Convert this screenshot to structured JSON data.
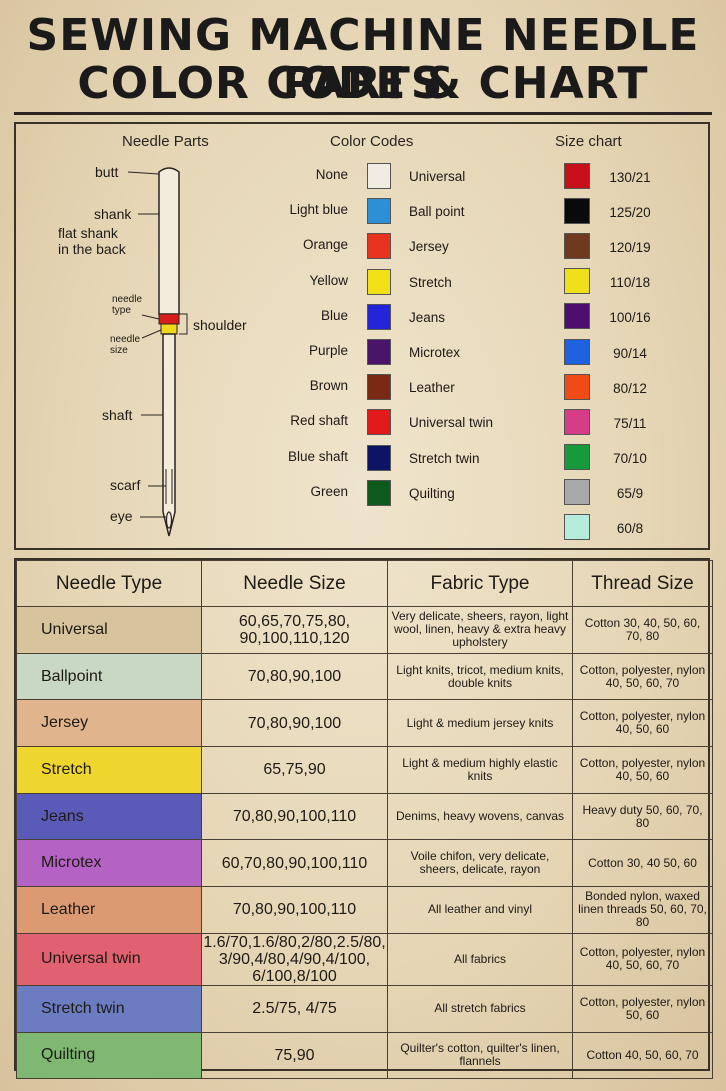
{
  "title": {
    "line1": "SEWING MACHINE NEEDLE PARTS",
    "line2": "COLOR CODE & CHART"
  },
  "headers": {
    "needle_parts": "Needle Parts",
    "color_codes": "Color Codes",
    "size_chart": "Size chart"
  },
  "needle_parts": {
    "butt": "butt",
    "shank": "shank",
    "flat_shank_1": "flat shank",
    "flat_shank_2": "in the back",
    "needle_type_1": "needle",
    "needle_type_2": "type",
    "needle_size_1": "needle",
    "needle_size_2": "size",
    "shoulder": "shoulder",
    "shaft": "shaft",
    "scarf": "scarf",
    "eye": "eye"
  },
  "color_codes": [
    {
      "name": "None",
      "color": "#f1ece3",
      "type": "Universal"
    },
    {
      "name": "Light blue",
      "color": "#2d8fd6",
      "type": "Ball point"
    },
    {
      "name": "Orange",
      "color": "#e8331f",
      "type": "Jersey"
    },
    {
      "name": "Yellow",
      "color": "#f1e116",
      "type": "Stretch"
    },
    {
      "name": "Blue",
      "color": "#2424d8",
      "type": "Jeans"
    },
    {
      "name": "Purple",
      "color": "#4a1468",
      "type": "Microtex"
    },
    {
      "name": "Brown",
      "color": "#7a2a14",
      "type": "Leather"
    },
    {
      "name": "Red shaft",
      "color": "#e31a1a",
      "type": "Universal twin"
    },
    {
      "name": "Blue shaft",
      "color": "#0d1466",
      "type": "Stretch twin"
    },
    {
      "name": "Green",
      "color": "#0d5a1a",
      "type": "Quilting"
    }
  ],
  "size_chart": [
    {
      "label": "130/21",
      "color": "#c8101a"
    },
    {
      "label": "125/20",
      "color": "#0a0a0a"
    },
    {
      "label": "120/19",
      "color": "#6e3a1e"
    },
    {
      "label": "110/18",
      "color": "#efe01a"
    },
    {
      "label": "100/16",
      "color": "#4d0f6e"
    },
    {
      "label": "90/14",
      "color": "#1e62e0"
    },
    {
      "label": "80/12",
      "color": "#f04a16"
    },
    {
      "label": "75/11",
      "color": "#d63d86"
    },
    {
      "label": "70/10",
      "color": "#169a3c"
    },
    {
      "label": "65/9",
      "color": "#a8a8aa"
    },
    {
      "label": "60/8",
      "color": "#b6ecdc"
    }
  ],
  "table": {
    "headers": [
      "Needle Type",
      "Needle Size",
      "Fabric Type",
      "Thread Size"
    ],
    "rows": [
      {
        "type": "Universal",
        "color": "#d8c49c",
        "size": "60,65,70,75,80, 90,100,110,120",
        "fabric": "Very delicate, sheers, rayon, light wool, linen, heavy & extra heavy upholstery",
        "thread": "Cotton 30, 40, 50, 60, 70, 80"
      },
      {
        "type": "Ballpoint",
        "color": "#c9d8c4",
        "size": "70,80,90,100",
        "fabric": "Light knits, tricot, medium knits, double knits",
        "thread": "Cotton, polyester, nylon 40, 50, 60, 70"
      },
      {
        "type": "Jersey",
        "color": "#e0b48c",
        "size": "70,80,90,100",
        "fabric": "Light & medium jersey knits",
        "thread": "Cotton, polyester, nylon 40, 50, 60"
      },
      {
        "type": "Stretch",
        "color": "#eed62e",
        "size": "65,75,90",
        "fabric": "Light & medium highly elastic knits",
        "thread": "Cotton, polyester, nylon 40, 50, 60"
      },
      {
        "type": "Jeans",
        "color": "#5a5ab8",
        "size": "70,80,90,100,110",
        "fabric": "Denims, heavy wovens, canvas",
        "thread": "Heavy duty 50, 60, 70, 80"
      },
      {
        "type": "Microtex",
        "color": "#b462c4",
        "size": "60,70,80,90,100,110",
        "fabric": "Voile chifon, very delicate, sheers, delicate, rayon",
        "thread": "Cotton 30, 40 50, 60"
      },
      {
        "type": "Leather",
        "color": "#dc9a72",
        "size": "70,80,90,100,110",
        "fabric": "All leather and vinyl",
        "thread": "Bonded nylon, waxed linen threads 50, 60, 70, 80"
      },
      {
        "type": "Universal twin",
        "color": "#e06270",
        "size": "1.6/70,1.6/80,2/80,2.5/80, 3/90,4/80,4/90,4/100, 6/100,8/100",
        "fabric": "All fabrics",
        "thread": "Cotton, polyester, nylon 40, 50, 60, 70"
      },
      {
        "type": "Stretch twin",
        "color": "#6c7cc0",
        "size": "2.5/75, 4/75",
        "fabric": "All stretch fabrics",
        "thread": "Cotton, polyester, nylon 50, 60"
      },
      {
        "type": "Quilting",
        "color": "#7eb872",
        "size": "75,90",
        "fabric": "Quilter's cotton, quilter's linen, flannels",
        "thread": "Cotton 40, 50, 60, 70"
      }
    ]
  }
}
